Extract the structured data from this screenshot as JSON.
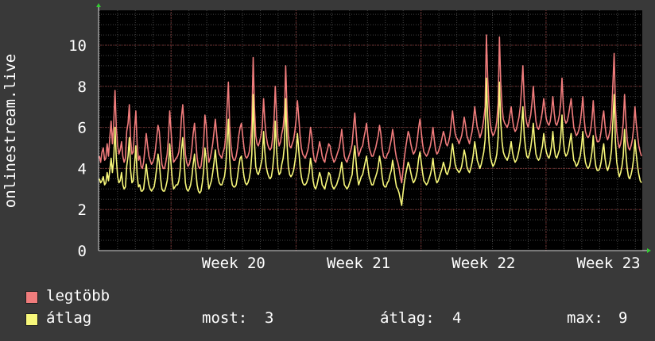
{
  "chart_data": {
    "type": "line",
    "ylabel": "onlinestream.live",
    "ylim": [
      0,
      11.7
    ],
    "yticks": [
      0,
      2,
      4,
      6,
      8,
      10
    ],
    "xticks": [
      {
        "label": "Week 20",
        "week": 20
      },
      {
        "label": "Week 21",
        "week": 21
      },
      {
        "label": "Week 22",
        "week": 22
      },
      {
        "label": "Week 23",
        "week": 23
      }
    ],
    "x_start_week": 19.42,
    "x_end_week": 23.77,
    "grid": true,
    "background": "#000000",
    "grid_color": "#444444",
    "major_grid_color": "#7a3030",
    "series": [
      {
        "name": "legtöbb",
        "color": "#f07c7c",
        "values": [
          4.6,
          4.3,
          4.8,
          5.0,
          4.4,
          4.5,
          5.2,
          4.6,
          5.5,
          6.3,
          5.2,
          6.1,
          7.8,
          6.0,
          5.1,
          4.7,
          4.9,
          5.3,
          4.6,
          4.3,
          4.5,
          5.8,
          6.2,
          7.1,
          5.4,
          4.7,
          4.8,
          5.9,
          6.8,
          5.2,
          4.4,
          4.6,
          4.1,
          4.0,
          4.3,
          5.0,
          5.7,
          5.1,
          4.6,
          4.4,
          4.2,
          4.3,
          4.5,
          4.9,
          5.5,
          6.1,
          5.8,
          4.9,
          4.2,
          4.0,
          4.0,
          4.3,
          4.7,
          5.5,
          6.8,
          5.8,
          4.8,
          4.3,
          4.4,
          4.5,
          4.6,
          4.8,
          5.4,
          6.5,
          7.1,
          6.0,
          4.7,
          4.3,
          4.1,
          4.2,
          4.5,
          5.0,
          5.7,
          6.2,
          5.4,
          4.5,
          4.1,
          4.0,
          4.1,
          4.6,
          5.3,
          6.6,
          6.1,
          5.0,
          4.3,
          4.5,
          4.8,
          5.2,
          5.8,
          6.4,
          5.7,
          5.0,
          4.7,
          4.6,
          4.5,
          4.8,
          5.0,
          5.6,
          7.0,
          8.2,
          6.1,
          5.1,
          4.6,
          4.4,
          4.4,
          4.6,
          5.0,
          5.6,
          6.0,
          6.2,
          5.6,
          5.0,
          4.6,
          4.5,
          4.6,
          4.8,
          5.3,
          6.2,
          9.4,
          7.0,
          5.6,
          5.2,
          5.1,
          5.3,
          5.6,
          6.0,
          7.4,
          6.3,
          5.6,
          5.2,
          5.0,
          4.9,
          5.0,
          5.5,
          6.3,
          8.0,
          6.5,
          5.5,
          5.1,
          5.3,
          5.7,
          6.0,
          6.7,
          9.0,
          6.8,
          5.6,
          5.1,
          5.0,
          5.2,
          5.4,
          5.8,
          6.4,
          7.3,
          6.5,
          5.6,
          5.0,
          4.7,
          4.6,
          4.5,
          4.7,
          4.9,
          5.3,
          6.0,
          5.6,
          4.8,
          4.4,
          4.3,
          4.6,
          4.9,
          5.3,
          5.0,
          4.6,
          4.4,
          4.3,
          4.7,
          4.9,
          5.2,
          5.1,
          4.7,
          4.5,
          4.3,
          4.4,
          4.6,
          4.8,
          5.0,
          5.4,
          5.9,
          5.2,
          4.6,
          4.4,
          4.3,
          4.5,
          4.7,
          4.9,
          5.2,
          6.0,
          6.7,
          5.8,
          5.0,
          4.6,
          4.8,
          5.0,
          5.1,
          5.5,
          5.8,
          6.2,
          5.6,
          5.0,
          4.8,
          4.6,
          4.6,
          4.8,
          5.0,
          5.3,
          5.6,
          6.1,
          5.7,
          5.0,
          4.6,
          4.5,
          4.5,
          4.7,
          4.8,
          5.1,
          5.4,
          5.9,
          5.5,
          4.9,
          4.5,
          4.3,
          4.0,
          3.6,
          3.3,
          3.9,
          4.5,
          5.0,
          5.4,
          5.8,
          5.6,
          5.2,
          4.9,
          4.7,
          4.8,
          5.0,
          5.4,
          6.0,
          6.4,
          5.8,
          5.2,
          4.8,
          4.7,
          4.6,
          4.7,
          4.9,
          5.1,
          5.5,
          6.0,
          5.4,
          4.9,
          4.7,
          4.8,
          5.0,
          5.2,
          5.5,
          5.8,
          5.6,
          5.2,
          5.1,
          5.3,
          5.6,
          6.2,
          6.8,
          6.2,
          5.7,
          5.5,
          5.4,
          5.2,
          5.4,
          5.6,
          6.0,
          6.5,
          6.1,
          5.6,
          5.4,
          5.2,
          5.5,
          5.8,
          6.3,
          7.0,
          6.5,
          6.0,
          5.8,
          5.5,
          5.7,
          6.0,
          6.4,
          7.0,
          10.5,
          8.4,
          7.0,
          6.2,
          5.8,
          5.6,
          5.7,
          5.9,
          6.3,
          7.2,
          10.4,
          8.2,
          7.0,
          6.4,
          6.2,
          6.1,
          6.0,
          6.2,
          6.6,
          7.0,
          6.4,
          6.0,
          5.8,
          5.9,
          6.2,
          6.5,
          7.0,
          7.9,
          9.0,
          7.3,
          6.6,
          6.2,
          6.0,
          6.3,
          6.6,
          7.2,
          8.0,
          7.0,
          6.3,
          6.0,
          5.9,
          6.1,
          6.4,
          6.8,
          7.4,
          6.9,
          6.4,
          6.2,
          6.1,
          6.3,
          6.8,
          7.5,
          6.7,
          6.2,
          6.1,
          6.3,
          6.6,
          7.2,
          8.4,
          7.1,
          6.4,
          6.2,
          6.3,
          6.6,
          7.0,
          7.4,
          6.7,
          6.0,
          5.8,
          5.6,
          5.7,
          5.9,
          6.2,
          6.8,
          7.5,
          6.4,
          5.8,
          5.6,
          5.5,
          5.6,
          5.9,
          6.4,
          7.3,
          6.2,
          5.6,
          5.3,
          5.3,
          5.4,
          5.8,
          6.4,
          6.8,
          6.1,
          5.6,
          5.4,
          5.6,
          5.9,
          6.5,
          8.0,
          9.6,
          7.0,
          5.8,
          5.3,
          5.0,
          5.2,
          5.6,
          6.2,
          7.6,
          6.4,
          5.4,
          5.0,
          4.9,
          5.1,
          5.4,
          6.0,
          7.0,
          6.2,
          5.6,
          5.1,
          4.8,
          4.6
        ]
      },
      {
        "name": "átlag",
        "color": "#f7f77a",
        "values": [
          3.5,
          3.3,
          3.4,
          3.6,
          3.2,
          3.3,
          3.8,
          3.4,
          3.9,
          4.5,
          3.8,
          4.4,
          6.0,
          4.5,
          3.6,
          3.3,
          3.4,
          3.8,
          3.2,
          3.0,
          3.1,
          4.1,
          4.6,
          5.5,
          3.9,
          3.3,
          3.4,
          4.2,
          5.1,
          3.7,
          3.1,
          3.2,
          2.9,
          2.9,
          3.0,
          3.6,
          4.2,
          3.6,
          3.2,
          3.0,
          2.9,
          3.0,
          3.1,
          3.5,
          4.0,
          4.7,
          4.3,
          3.5,
          3.0,
          2.9,
          2.9,
          3.1,
          3.4,
          4.0,
          5.2,
          4.2,
          3.4,
          3.0,
          3.1,
          3.2,
          3.2,
          3.4,
          3.9,
          4.9,
          5.5,
          4.4,
          3.3,
          3.0,
          2.9,
          3.0,
          3.2,
          3.6,
          4.2,
          4.7,
          3.9,
          3.2,
          2.9,
          2.8,
          2.9,
          3.3,
          3.9,
          5.0,
          4.5,
          3.6,
          3.0,
          3.2,
          3.4,
          3.8,
          4.3,
          4.9,
          4.2,
          3.6,
          3.3,
          3.2,
          3.2,
          3.4,
          3.6,
          4.1,
          5.3,
          6.4,
          4.5,
          3.6,
          3.2,
          3.1,
          3.1,
          3.2,
          3.6,
          4.1,
          4.5,
          4.6,
          4.1,
          3.6,
          3.3,
          3.2,
          3.3,
          3.5,
          3.9,
          4.7,
          7.6,
          5.3,
          4.1,
          3.8,
          3.7,
          3.9,
          4.2,
          4.5,
          5.8,
          4.8,
          4.1,
          3.8,
          3.6,
          3.5,
          3.6,
          4.0,
          4.7,
          6.3,
          4.9,
          4.0,
          3.7,
          3.8,
          4.2,
          4.5,
          5.1,
          7.4,
          5.2,
          4.1,
          3.7,
          3.6,
          3.7,
          3.9,
          4.3,
          4.8,
          5.7,
          4.9,
          4.1,
          3.6,
          3.3,
          3.2,
          3.2,
          3.3,
          3.5,
          3.8,
          4.5,
          4.1,
          3.4,
          3.1,
          3.0,
          3.2,
          3.5,
          3.8,
          3.6,
          3.2,
          3.1,
          3.0,
          3.3,
          3.5,
          3.8,
          3.7,
          3.3,
          3.1,
          3.0,
          3.1,
          3.2,
          3.4,
          3.6,
          3.9,
          4.3,
          3.7,
          3.2,
          3.1,
          3.0,
          3.1,
          3.3,
          3.5,
          3.7,
          4.5,
          5.1,
          4.3,
          3.6,
          3.2,
          3.4,
          3.6,
          3.7,
          4.0,
          4.3,
          4.6,
          4.1,
          3.6,
          3.4,
          3.2,
          3.2,
          3.4,
          3.6,
          3.8,
          4.1,
          4.6,
          4.2,
          3.6,
          3.2,
          3.1,
          3.1,
          3.3,
          3.4,
          3.7,
          3.9,
          4.4,
          4.0,
          3.5,
          3.1,
          3.0,
          2.8,
          2.5,
          2.2,
          2.8,
          3.3,
          3.7,
          4.0,
          4.3,
          4.1,
          3.8,
          3.5,
          3.3,
          3.4,
          3.6,
          3.9,
          4.5,
          4.8,
          4.3,
          3.8,
          3.4,
          3.3,
          3.2,
          3.3,
          3.5,
          3.7,
          4.0,
          4.5,
          3.9,
          3.5,
          3.3,
          3.4,
          3.6,
          3.8,
          4.0,
          4.3,
          4.1,
          3.8,
          3.7,
          3.9,
          4.1,
          4.7,
          5.2,
          4.7,
          4.2,
          4.0,
          3.9,
          3.8,
          3.9,
          4.1,
          4.5,
          4.9,
          4.6,
          4.1,
          3.9,
          3.8,
          4.0,
          4.3,
          4.7,
          5.3,
          4.9,
          4.4,
          4.2,
          4.0,
          4.2,
          4.5,
          4.8,
          5.4,
          8.4,
          6.5,
          5.3,
          4.6,
          4.3,
          4.1,
          4.2,
          4.4,
          4.7,
          5.5,
          8.2,
          6.3,
          5.3,
          4.8,
          4.6,
          4.5,
          4.4,
          4.6,
          4.9,
          5.3,
          4.8,
          4.5,
          4.3,
          4.4,
          4.6,
          4.9,
          5.3,
          6.1,
          7.0,
          5.6,
          5.0,
          4.6,
          4.5,
          4.7,
          5.0,
          5.5,
          6.2,
          5.3,
          4.7,
          4.5,
          4.4,
          4.5,
          4.8,
          5.1,
          5.7,
          5.2,
          4.8,
          4.6,
          4.5,
          4.7,
          5.1,
          5.8,
          5.0,
          4.6,
          4.5,
          4.7,
          4.9,
          5.5,
          6.6,
          5.4,
          4.8,
          4.6,
          4.7,
          4.9,
          5.3,
          5.7,
          5.0,
          4.4,
          4.3,
          4.1,
          4.2,
          4.4,
          4.6,
          5.1,
          5.8,
          4.8,
          4.3,
          4.1,
          4.0,
          4.1,
          4.4,
          4.8,
          5.6,
          4.6,
          4.1,
          3.9,
          3.9,
          4.0,
          4.3,
          4.8,
          5.2,
          4.5,
          4.1,
          3.9,
          4.1,
          4.4,
          4.9,
          6.2,
          7.6,
          5.3,
          4.3,
          3.9,
          3.6,
          3.8,
          4.1,
          4.6,
          5.9,
          4.8,
          4.0,
          3.6,
          3.5,
          3.7,
          4.0,
          4.5,
          5.4,
          4.7,
          4.1,
          3.7,
          3.4,
          3.3
        ]
      }
    ],
    "legend": [
      {
        "label": "legtöbb",
        "color": "#f07c7c"
      },
      {
        "label": "átlag",
        "color": "#f7f77a"
      }
    ],
    "stats": {
      "most_label": "most:",
      "most_value": "3",
      "atlag_label": "átlag:",
      "atlag_value": "4",
      "max_label": "max:",
      "max_value": "9"
    }
  }
}
